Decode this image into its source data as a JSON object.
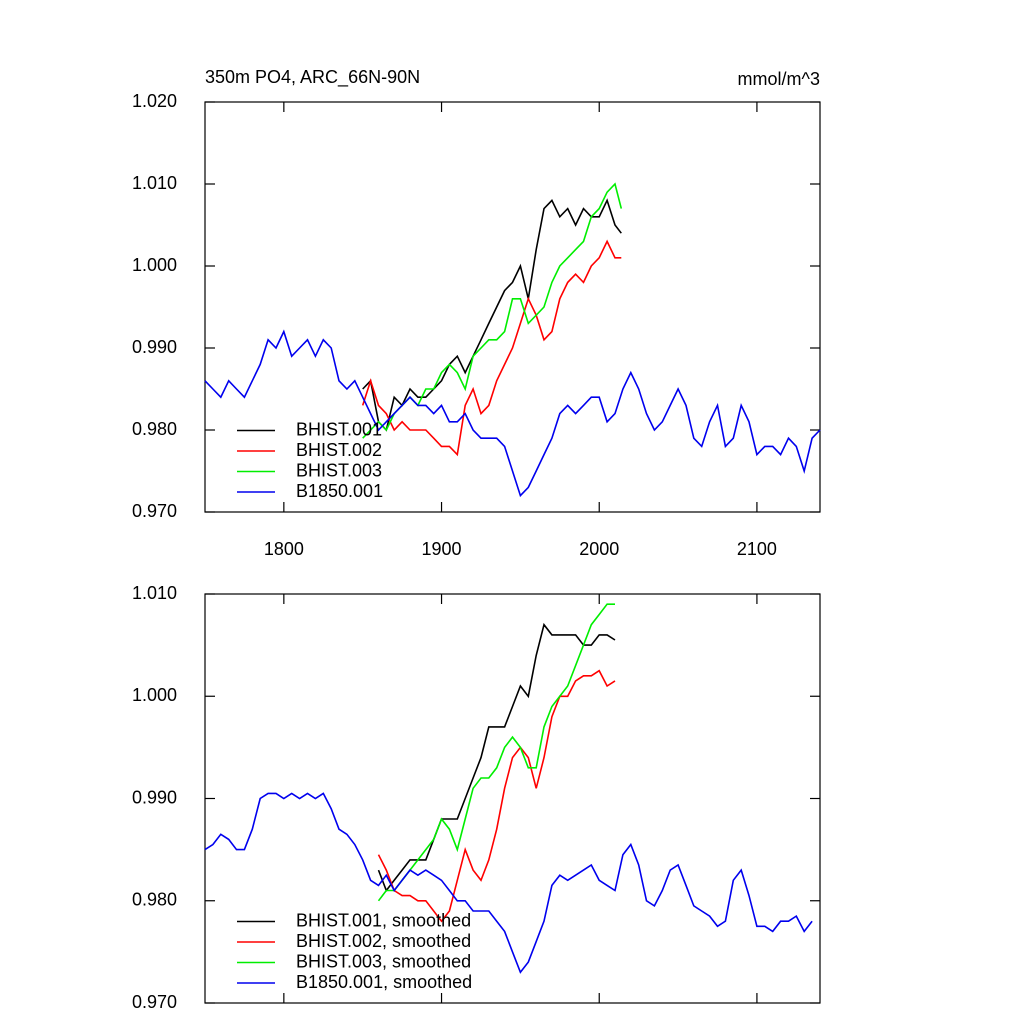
{
  "chart_data": [
    {
      "type": "line",
      "title": "350m PO4, ARC_66N-90N",
      "units": "mmol/m^3",
      "xlim": [
        1750,
        2140
      ],
      "xticks": [
        1800,
        1900,
        2000,
        2100
      ],
      "show_xtick_labels": true,
      "ylim": [
        0.97,
        1.02
      ],
      "yticks": [
        {
          "value": 0.97,
          "label": "0.970"
        },
        {
          "value": 0.98,
          "label": "0.980"
        },
        {
          "value": 0.99,
          "label": "0.990"
        },
        {
          "value": 1.0,
          "label": "1.000"
        },
        {
          "value": 1.01,
          "label": "1.010"
        },
        {
          "value": 1.02,
          "label": "1.020"
        }
      ],
      "legend": "lower left",
      "series": [
        {
          "name": "BHIST.001",
          "color": "#000000",
          "x": [
            1850,
            1855,
            1860,
            1865,
            1870,
            1875,
            1880,
            1885,
            1890,
            1895,
            1900,
            1905,
            1910,
            1915,
            1920,
            1925,
            1930,
            1935,
            1940,
            1945,
            1950,
            1955,
            1960,
            1965,
            1970,
            1975,
            1980,
            1985,
            1990,
            1995,
            2000,
            2005,
            2010,
            2014
          ],
          "values": [
            0.985,
            0.986,
            0.981,
            0.98,
            0.984,
            0.983,
            0.985,
            0.984,
            0.984,
            0.985,
            0.986,
            0.988,
            0.989,
            0.987,
            0.989,
            0.991,
            0.993,
            0.995,
            0.997,
            0.998,
            1.0,
            0.996,
            1.002,
            1.007,
            1.008,
            1.006,
            1.007,
            1.005,
            1.007,
            1.006,
            1.006,
            1.008,
            1.005,
            1.004
          ]
        },
        {
          "name": "BHIST.002",
          "color": "#ff0000",
          "x": [
            1850,
            1855,
            1860,
            1865,
            1870,
            1875,
            1880,
            1885,
            1890,
            1895,
            1900,
            1905,
            1910,
            1915,
            1920,
            1925,
            1930,
            1935,
            1940,
            1945,
            1950,
            1955,
            1960,
            1965,
            1970,
            1975,
            1980,
            1985,
            1990,
            1995,
            2000,
            2005,
            2010,
            2014
          ],
          "values": [
            0.983,
            0.986,
            0.983,
            0.982,
            0.98,
            0.981,
            0.98,
            0.98,
            0.98,
            0.979,
            0.978,
            0.978,
            0.977,
            0.983,
            0.985,
            0.982,
            0.983,
            0.986,
            0.988,
            0.99,
            0.993,
            0.996,
            0.994,
            0.991,
            0.992,
            0.996,
            0.998,
            0.999,
            0.998,
            1.0,
            1.001,
            1.003,
            1.001,
            1.001
          ]
        },
        {
          "name": "BHIST.003",
          "color": "#00ee00",
          "x": [
            1850,
            1855,
            1860,
            1865,
            1870,
            1875,
            1880,
            1885,
            1890,
            1895,
            1900,
            1905,
            1910,
            1915,
            1920,
            1925,
            1930,
            1935,
            1940,
            1945,
            1950,
            1955,
            1960,
            1965,
            1970,
            1975,
            1980,
            1985,
            1990,
            1995,
            2000,
            2005,
            2010,
            2014
          ],
          "values": [
            0.979,
            0.98,
            0.981,
            0.98,
            0.982,
            0.983,
            0.984,
            0.983,
            0.985,
            0.985,
            0.987,
            0.988,
            0.987,
            0.985,
            0.989,
            0.99,
            0.991,
            0.991,
            0.992,
            0.996,
            0.996,
            0.993,
            0.994,
            0.995,
            0.998,
            1.0,
            1.001,
            1.002,
            1.003,
            1.006,
            1.007,
            1.009,
            1.01,
            1.007
          ]
        },
        {
          "name": "B1850.001",
          "color": "#0000ee",
          "x": [
            1750,
            1755,
            1760,
            1765,
            1770,
            1775,
            1780,
            1785,
            1790,
            1795,
            1800,
            1805,
            1810,
            1815,
            1820,
            1825,
            1830,
            1835,
            1840,
            1845,
            1850,
            1855,
            1860,
            1865,
            1870,
            1875,
            1880,
            1885,
            1890,
            1895,
            1900,
            1905,
            1910,
            1915,
            1920,
            1925,
            1930,
            1935,
            1940,
            1945,
            1950,
            1955,
            1960,
            1965,
            1970,
            1975,
            1980,
            1985,
            1990,
            1995,
            2000,
            2005,
            2010,
            2015,
            2020,
            2025,
            2030,
            2035,
            2040,
            2045,
            2050,
            2055,
            2060,
            2065,
            2070,
            2075,
            2080,
            2085,
            2090,
            2095,
            2100,
            2105,
            2110,
            2115,
            2120,
            2125,
            2130,
            2135,
            2140
          ],
          "values": [
            0.986,
            0.985,
            0.984,
            0.986,
            0.985,
            0.984,
            0.986,
            0.988,
            0.991,
            0.99,
            0.992,
            0.989,
            0.99,
            0.991,
            0.989,
            0.991,
            0.99,
            0.986,
            0.985,
            0.986,
            0.984,
            0.982,
            0.98,
            0.981,
            0.982,
            0.983,
            0.984,
            0.983,
            0.983,
            0.982,
            0.983,
            0.981,
            0.981,
            0.982,
            0.98,
            0.979,
            0.979,
            0.979,
            0.978,
            0.975,
            0.972,
            0.973,
            0.975,
            0.977,
            0.979,
            0.982,
            0.983,
            0.982,
            0.983,
            0.984,
            0.984,
            0.981,
            0.982,
            0.985,
            0.987,
            0.985,
            0.982,
            0.98,
            0.981,
            0.983,
            0.985,
            0.983,
            0.979,
            0.978,
            0.981,
            0.983,
            0.978,
            0.979,
            0.983,
            0.981,
            0.977,
            0.978,
            0.978,
            0.977,
            0.979,
            0.978,
            0.975,
            0.979,
            0.98
          ]
        }
      ]
    },
    {
      "type": "line",
      "xlim": [
        1750,
        2140
      ],
      "xticks": [
        1800,
        1900,
        2000,
        2100
      ],
      "show_xtick_labels": false,
      "ylim": [
        0.97,
        1.01
      ],
      "yticks": [
        {
          "value": 0.97,
          "label": "0.970"
        },
        {
          "value": 0.98,
          "label": "0.980"
        },
        {
          "value": 0.99,
          "label": "0.990"
        },
        {
          "value": 1.0,
          "label": "1.000"
        },
        {
          "value": 1.01,
          "label": "1.010"
        }
      ],
      "legend": "lower left",
      "series": [
        {
          "name": "BHIST.001, smoothed",
          "color": "#000000",
          "x": [
            1860,
            1865,
            1870,
            1875,
            1880,
            1885,
            1890,
            1895,
            1900,
            1905,
            1910,
            1915,
            1920,
            1925,
            1930,
            1935,
            1940,
            1945,
            1950,
            1955,
            1960,
            1965,
            1970,
            1975,
            1980,
            1985,
            1990,
            1995,
            2000,
            2005,
            2010
          ],
          "values": [
            0.983,
            0.981,
            0.982,
            0.983,
            0.984,
            0.984,
            0.984,
            0.986,
            0.988,
            0.988,
            0.988,
            0.99,
            0.992,
            0.994,
            0.997,
            0.997,
            0.997,
            0.999,
            1.001,
            1.0,
            1.004,
            1.007,
            1.006,
            1.006,
            1.006,
            1.006,
            1.005,
            1.005,
            1.006,
            1.006,
            1.0055
          ]
        },
        {
          "name": "BHIST.002, smoothed",
          "color": "#ff0000",
          "x": [
            1860,
            1865,
            1870,
            1875,
            1880,
            1885,
            1890,
            1895,
            1900,
            1905,
            1910,
            1915,
            1920,
            1925,
            1930,
            1935,
            1940,
            1945,
            1950,
            1955,
            1960,
            1965,
            1970,
            1975,
            1980,
            1985,
            1990,
            1995,
            2000,
            2005,
            2010
          ],
          "values": [
            0.9845,
            0.983,
            0.981,
            0.9805,
            0.9805,
            0.98,
            0.98,
            0.979,
            0.978,
            0.979,
            0.982,
            0.985,
            0.983,
            0.982,
            0.984,
            0.987,
            0.991,
            0.994,
            0.995,
            0.994,
            0.991,
            0.994,
            0.998,
            1.0,
            1.0,
            1.0015,
            1.002,
            1.002,
            1.0025,
            1.001,
            1.0015
          ]
        },
        {
          "name": "BHIST.003, smoothed",
          "color": "#00ee00",
          "x": [
            1860,
            1865,
            1870,
            1875,
            1880,
            1885,
            1890,
            1895,
            1900,
            1905,
            1910,
            1915,
            1920,
            1925,
            1930,
            1935,
            1940,
            1945,
            1950,
            1955,
            1960,
            1965,
            1970,
            1975,
            1980,
            1985,
            1990,
            1995,
            2000,
            2005,
            2010
          ],
          "values": [
            0.98,
            0.981,
            0.981,
            0.982,
            0.983,
            0.984,
            0.985,
            0.986,
            0.988,
            0.987,
            0.985,
            0.988,
            0.991,
            0.992,
            0.992,
            0.993,
            0.995,
            0.996,
            0.995,
            0.993,
            0.993,
            0.997,
            0.999,
            1.0,
            1.001,
            1.003,
            1.005,
            1.007,
            1.008,
            1.009,
            1.009
          ]
        },
        {
          "name": "B1850.001, smoothed",
          "color": "#0000ee",
          "x": [
            1750,
            1755,
            1760,
            1765,
            1770,
            1775,
            1780,
            1785,
            1790,
            1795,
            1800,
            1805,
            1810,
            1815,
            1820,
            1825,
            1830,
            1835,
            1840,
            1845,
            1850,
            1855,
            1860,
            1865,
            1870,
            1875,
            1880,
            1885,
            1890,
            1895,
            1900,
            1905,
            1910,
            1915,
            1920,
            1925,
            1930,
            1935,
            1940,
            1945,
            1950,
            1955,
            1960,
            1965,
            1970,
            1975,
            1980,
            1985,
            1990,
            1995,
            2000,
            2005,
            2010,
            2015,
            2020,
            2025,
            2030,
            2035,
            2040,
            2045,
            2050,
            2055,
            2060,
            2065,
            2070,
            2075,
            2080,
            2085,
            2090,
            2095,
            2100,
            2105,
            2110,
            2115,
            2120,
            2125,
            2130,
            2135
          ],
          "values": [
            0.985,
            0.9855,
            0.9865,
            0.986,
            0.985,
            0.985,
            0.987,
            0.99,
            0.9905,
            0.9905,
            0.99,
            0.9905,
            0.99,
            0.9905,
            0.99,
            0.9905,
            0.989,
            0.987,
            0.9865,
            0.9855,
            0.984,
            0.982,
            0.9815,
            0.9825,
            0.981,
            0.982,
            0.983,
            0.9825,
            0.983,
            0.9825,
            0.982,
            0.981,
            0.98,
            0.98,
            0.979,
            0.979,
            0.979,
            0.978,
            0.977,
            0.975,
            0.973,
            0.974,
            0.976,
            0.978,
            0.9815,
            0.9825,
            0.982,
            0.9825,
            0.983,
            0.9835,
            0.982,
            0.9815,
            0.981,
            0.9845,
            0.9855,
            0.9835,
            0.98,
            0.9795,
            0.981,
            0.983,
            0.9835,
            0.9815,
            0.9795,
            0.979,
            0.9785,
            0.9775,
            0.978,
            0.982,
            0.983,
            0.9805,
            0.9775,
            0.9775,
            0.977,
            0.978,
            0.978,
            0.9785,
            0.977,
            0.978
          ]
        }
      ]
    }
  ]
}
